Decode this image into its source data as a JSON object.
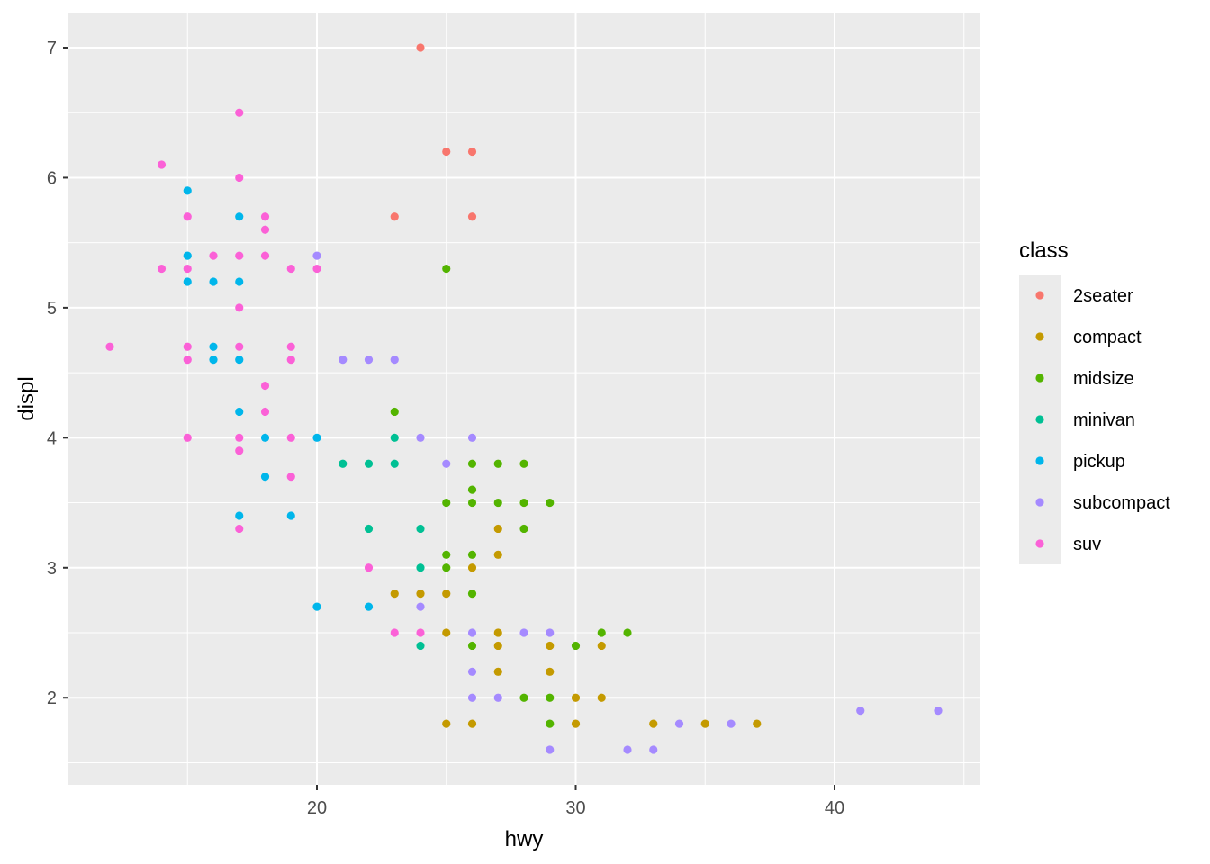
{
  "chart_data": {
    "type": "scatter",
    "title": "",
    "xlabel": "hwy",
    "ylabel": "displ",
    "xlim": [
      10.4,
      45.6
    ],
    "ylim": [
      1.33,
      7.27
    ],
    "xticks": [
      20,
      30,
      40
    ],
    "yticks": [
      2,
      3,
      4,
      5,
      6,
      7
    ],
    "grid": true,
    "legend": {
      "title": "class",
      "placement": "right"
    },
    "series": [
      {
        "name": "2seater",
        "color": "#F8766D",
        "points": [
          [
            24,
            7.0
          ],
          [
            25,
            6.2
          ],
          [
            26,
            6.2
          ],
          [
            23,
            5.7
          ],
          [
            26,
            5.7
          ]
        ]
      },
      {
        "name": "compact",
        "color": "#C49A00",
        "points": [
          [
            23,
            2.8
          ],
          [
            24,
            2.8
          ],
          [
            25,
            2.8
          ],
          [
            25,
            2.5
          ],
          [
            27,
            2.5
          ],
          [
            27,
            2.4
          ],
          [
            29,
            2.4
          ],
          [
            31,
            2.4
          ],
          [
            27,
            2.2
          ],
          [
            29,
            2.2
          ],
          [
            30,
            2.0
          ],
          [
            31,
            2.0
          ],
          [
            25,
            1.8
          ],
          [
            26,
            1.8
          ],
          [
            30,
            1.8
          ],
          [
            33,
            1.8
          ],
          [
            35,
            1.8
          ],
          [
            37,
            1.8
          ],
          [
            26,
            3.0
          ],
          [
            27,
            3.1
          ],
          [
            27,
            3.3
          ]
        ]
      },
      {
        "name": "midsize",
        "color": "#53B400",
        "points": [
          [
            25,
            5.3
          ],
          [
            23,
            4.2
          ],
          [
            26,
            3.8
          ],
          [
            27,
            3.8
          ],
          [
            28,
            3.8
          ],
          [
            26,
            3.6
          ],
          [
            25,
            3.5
          ],
          [
            26,
            3.5
          ],
          [
            27,
            3.5
          ],
          [
            28,
            3.5
          ],
          [
            29,
            3.5
          ],
          [
            28,
            3.3
          ],
          [
            25,
            3.1
          ],
          [
            26,
            3.1
          ],
          [
            25,
            3.0
          ],
          [
            26,
            2.8
          ],
          [
            31,
            2.5
          ],
          [
            32,
            2.5
          ],
          [
            26,
            2.4
          ],
          [
            30,
            2.4
          ],
          [
            28,
            2.0
          ],
          [
            29,
            2.0
          ],
          [
            29,
            1.8
          ]
        ]
      },
      {
        "name": "minivan",
        "color": "#00C094",
        "points": [
          [
            23,
            4.0
          ],
          [
            21,
            3.8
          ],
          [
            22,
            3.8
          ],
          [
            23,
            3.8
          ],
          [
            22,
            3.3
          ],
          [
            24,
            3.3
          ],
          [
            24,
            3.0
          ],
          [
            24,
            2.4
          ]
        ]
      },
      {
        "name": "pickup",
        "color": "#00B6EB",
        "points": [
          [
            15,
            5.9
          ],
          [
            17,
            5.7
          ],
          [
            15,
            5.4
          ],
          [
            15,
            5.2
          ],
          [
            16,
            5.2
          ],
          [
            17,
            5.2
          ],
          [
            16,
            4.7
          ],
          [
            16,
            4.6
          ],
          [
            17,
            4.6
          ],
          [
            17,
            4.2
          ],
          [
            18,
            4.0
          ],
          [
            20,
            4.0
          ],
          [
            18,
            3.7
          ],
          [
            17,
            3.4
          ],
          [
            19,
            3.4
          ],
          [
            20,
            2.7
          ],
          [
            22,
            2.7
          ]
        ]
      },
      {
        "name": "subcompact",
        "color": "#A58AFF",
        "points": [
          [
            20,
            5.4
          ],
          [
            21,
            4.6
          ],
          [
            22,
            4.6
          ],
          [
            23,
            4.6
          ],
          [
            24,
            4.0
          ],
          [
            26,
            4.0
          ],
          [
            25,
            3.8
          ],
          [
            24,
            2.7
          ],
          [
            26,
            2.5
          ],
          [
            28,
            2.5
          ],
          [
            29,
            2.5
          ],
          [
            26,
            2.2
          ],
          [
            26,
            2.0
          ],
          [
            27,
            2.0
          ],
          [
            34,
            1.8
          ],
          [
            36,
            1.8
          ],
          [
            29,
            1.6
          ],
          [
            32,
            1.6
          ],
          [
            33,
            1.6
          ],
          [
            41,
            1.9
          ],
          [
            44,
            1.9
          ]
        ]
      },
      {
        "name": "suv",
        "color": "#FB61D7",
        "points": [
          [
            17,
            6.5
          ],
          [
            14,
            6.1
          ],
          [
            17,
            6.0
          ],
          [
            15,
            5.7
          ],
          [
            18,
            5.7
          ],
          [
            18,
            5.6
          ],
          [
            16,
            5.4
          ],
          [
            17,
            5.4
          ],
          [
            18,
            5.4
          ],
          [
            14,
            5.3
          ],
          [
            15,
            5.3
          ],
          [
            19,
            5.3
          ],
          [
            20,
            5.3
          ],
          [
            17,
            5.0
          ],
          [
            12,
            4.7
          ],
          [
            15,
            4.7
          ],
          [
            17,
            4.7
          ],
          [
            19,
            4.7
          ],
          [
            15,
            4.6
          ],
          [
            19,
            4.6
          ],
          [
            18,
            4.4
          ],
          [
            18,
            4.2
          ],
          [
            15,
            4.0
          ],
          [
            17,
            4.0
          ],
          [
            19,
            4.0
          ],
          [
            17,
            3.9
          ],
          [
            19,
            3.7
          ],
          [
            17,
            3.3
          ],
          [
            22,
            3.0
          ],
          [
            23,
            2.5
          ],
          [
            24,
            2.5
          ]
        ]
      }
    ]
  }
}
